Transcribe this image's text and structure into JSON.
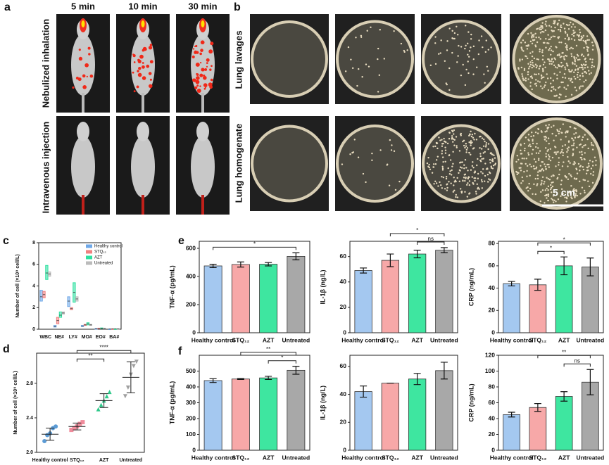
{
  "panel_labels": [
    "a",
    "b",
    "c",
    "d",
    "e",
    "f"
  ],
  "panel_a": {
    "columns": [
      "5 min",
      "10 min",
      "30 min"
    ],
    "rows": [
      "Nebulized inhalation",
      "Intravenous injection"
    ]
  },
  "panel_b": {
    "rows": [
      "Lung lavages",
      "Lung homogenate"
    ],
    "scale_bar": "5 cm"
  },
  "chart_data": [
    {
      "type": "box",
      "y_label": "Number of cell (×10⁹ cell/L)",
      "categories": [
        "WBC",
        "NE#",
        "LY#",
        "MO#",
        "EO#",
        "BA#"
      ],
      "ylim": [
        0,
        8
      ],
      "yticks": [
        0,
        2,
        4,
        6,
        8
      ],
      "legend": "upper right",
      "series": [
        {
          "name": "Healthy control",
          "color": "#6fa8e8",
          "values": [
            3.0,
            0.25,
            2.6,
            0.3,
            0.05,
            0.02
          ],
          "ranges": [
            [
              2.6,
              3.6
            ],
            [
              0.2,
              0.35
            ],
            [
              2.1,
              3.0
            ],
            [
              0.25,
              0.35
            ],
            [
              0.03,
              0.07
            ],
            [
              0.01,
              0.03
            ]
          ]
        },
        {
          "name": "STQ₁₂",
          "color": "#f08080",
          "values": [
            3.2,
            0.8,
            1.9,
            0.4,
            0.08,
            0.03
          ],
          "ranges": [
            [
              2.9,
              3.5
            ],
            [
              0.5,
              1.1
            ],
            [
              1.8,
              2.0
            ],
            [
              0.35,
              0.45
            ],
            [
              0.06,
              0.1
            ],
            [
              0.02,
              0.04
            ]
          ]
        },
        {
          "name": "AZT",
          "color": "#2ee0a0",
          "values": [
            5.2,
            1.3,
            3.4,
            0.5,
            0.1,
            0.03
          ],
          "ranges": [
            [
              4.6,
              5.9
            ],
            [
              1.1,
              1.6
            ],
            [
              2.5,
              4.3
            ],
            [
              0.4,
              0.6
            ],
            [
              0.08,
              0.12
            ],
            [
              0.02,
              0.04
            ]
          ]
        },
        {
          "name": "Untreated",
          "color": "#bbbbbb",
          "values": [
            5.1,
            1.5,
            2.8,
            0.4,
            0.08,
            0.03
          ],
          "ranges": [
            [
              4.9,
              5.3
            ],
            [
              1.4,
              1.6
            ],
            [
              2.6,
              3.0
            ],
            [
              0.35,
              0.45
            ],
            [
              0.06,
              0.1
            ],
            [
              0.02,
              0.04
            ]
          ]
        }
      ]
    },
    {
      "type": "dot",
      "y_label": "Number of cell (×10⁹ cell/L)",
      "categories": [
        "Healthy control",
        "STQ₁₂",
        "AZT",
        "Untreated"
      ],
      "ylim": [
        2.0,
        3.15
      ],
      "yticks": [
        {
          "value": 2.0,
          "label": "2.0"
        },
        2.4,
        2.8
      ],
      "colors": [
        "#5b9bd5",
        "#f08c9c",
        "#2ec98a",
        "#a0a0a0"
      ],
      "markers": [
        "circle",
        "square",
        "triangle",
        "triangle-down"
      ],
      "values": [
        [
          2.13,
          2.2,
          2.22,
          2.28,
          2.3
        ],
        [
          2.26,
          2.28,
          2.3,
          2.33,
          2.35
        ],
        [
          2.5,
          2.55,
          2.6,
          2.65,
          2.7
        ],
        [
          2.65,
          2.75,
          2.9,
          3.0,
          3.05
        ]
      ],
      "means": [
        2.21,
        2.3,
        2.6,
        2.87
      ],
      "errors": [
        0.07,
        0.04,
        0.08,
        0.18
      ],
      "significance": [
        {
          "between": [
            "STQ₁₂",
            "AZT"
          ],
          "label": "**"
        },
        {
          "between": [
            "STQ₁₂",
            "Untreated"
          ],
          "label": "****"
        }
      ]
    },
    {
      "type": "bar",
      "y_label": "TNF-α (pg/mL)",
      "categories": [
        "Healthy control",
        "STQ₁₂",
        "AZT",
        "Untreated"
      ],
      "ylim": [
        0,
        650
      ],
      "yticks": [
        0,
        200,
        400,
        600
      ],
      "colors": [
        "#a4c8f0",
        "#f7a8a8",
        "#3ee6a0",
        "#a8a8a8"
      ],
      "values": [
        475,
        485,
        487,
        543
      ],
      "errors": [
        12,
        18,
        12,
        25
      ],
      "significance": [
        {
          "between": [
            "Healthy control",
            "AZT",
            "Untreated"
          ],
          "label": "*"
        }
      ]
    },
    {
      "type": "bar",
      "y_label": "IL-1β (ng/L)",
      "categories": [
        "Healthy control",
        "STQ₁₂",
        "AZT",
        "Untreated"
      ],
      "ylim": [
        0,
        72
      ],
      "yticks": [
        0,
        20,
        40,
        60
      ],
      "colors": [
        "#a4c8f0",
        "#f7a8a8",
        "#3ee6a0",
        "#a8a8a8"
      ],
      "values": [
        49,
        57,
        62,
        65
      ],
      "errors": [
        2,
        5,
        3,
        2
      ],
      "significance": [
        {
          "between": [
            "AZT",
            "Untreated"
          ],
          "label": "ns"
        },
        {
          "between": [
            "STQ₁₂",
            "Untreated"
          ],
          "label": "*"
        }
      ]
    },
    {
      "type": "bar",
      "y_label": "CRP (ng/mL)",
      "categories": [
        "Healthy control",
        "STQ₁₂",
        "AZT",
        "Untreated"
      ],
      "ylim": [
        0,
        82
      ],
      "yticks": [
        0,
        20,
        40,
        60,
        80
      ],
      "colors": [
        "#a4c8f0",
        "#f7a8a8",
        "#3ee6a0",
        "#a8a8a8"
      ],
      "values": [
        44,
        43,
        60,
        59
      ],
      "errors": [
        2,
        5,
        8,
        8
      ],
      "significance": [
        {
          "between": [
            "STQ₁₂",
            "AZT"
          ],
          "label": "*"
        },
        {
          "between": [
            "STQ₁₂",
            "Untreated"
          ],
          "label": "*"
        }
      ]
    },
    {
      "type": "bar",
      "y_label": "TNF-α (pg/mL)",
      "categories": [
        "Healthy control",
        "STQ₁₂",
        "AZT",
        "Untreated"
      ],
      "ylim": [
        0,
        600
      ],
      "yticks": [
        0,
        100,
        200,
        300,
        400,
        500
      ],
      "colors": [
        "#a4c8f0",
        "#f7a8a8",
        "#3ee6a0",
        "#a8a8a8"
      ],
      "values": [
        440,
        450,
        457,
        505
      ],
      "errors": [
        12,
        3,
        10,
        25
      ],
      "significance": [
        {
          "between": [
            "AZT",
            "Untreated"
          ],
          "label": "*"
        },
        {
          "between": [
            "STQ₁₂",
            "Untreated"
          ],
          "label": "**"
        }
      ]
    },
    {
      "type": "bar",
      "y_label": "IL-1β (ng/L)",
      "categories": [
        "Healthy control",
        "STQ₁₂",
        "AZT",
        "Untreated"
      ],
      "ylim": [
        0,
        68
      ],
      "yticks": [
        0,
        20,
        40,
        60
      ],
      "colors": [
        "#a4c8f0",
        "#f7a8a8",
        "#3ee6a0",
        "#a8a8a8"
      ],
      "values": [
        42,
        48,
        51,
        57
      ],
      "errors": [
        4,
        0,
        4,
        6
      ]
    },
    {
      "type": "bar",
      "y_label": "CRP (ng/mL)",
      "categories": [
        "Healthy control",
        "STQ₁₂",
        "AZT",
        "Untreated"
      ],
      "ylim": [
        0,
        120
      ],
      "yticks": [
        0,
        20,
        40,
        60,
        80,
        100,
        120
      ],
      "colors": [
        "#a4c8f0",
        "#f7a8a8",
        "#3ee6a0",
        "#a8a8a8"
      ],
      "values": [
        45,
        54,
        68,
        86
      ],
      "errors": [
        3,
        5,
        6,
        16
      ],
      "significance": [
        {
          "between": [
            "AZT",
            "Untreated"
          ],
          "label": "ns"
        },
        {
          "between": [
            "STQ₁₂",
            "Untreated"
          ],
          "label": "**"
        }
      ]
    }
  ]
}
